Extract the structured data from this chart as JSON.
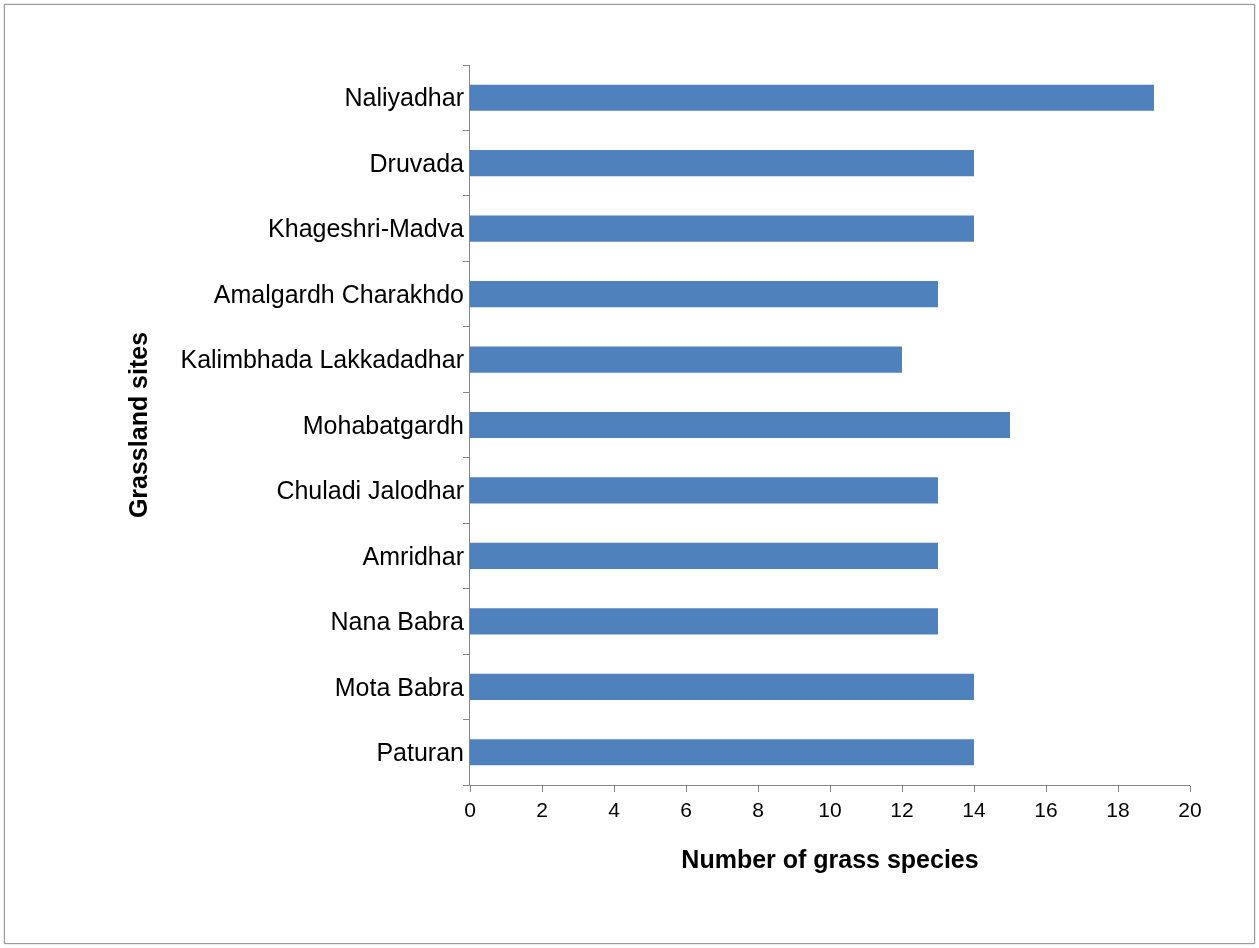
{
  "chart_data": {
    "type": "bar",
    "orientation": "horizontal",
    "xlabel": "Number of grass species",
    "ylabel": "Grassland sites",
    "categories": [
      "Naliyadhar",
      "Druvada",
      "Khageshri-Madva",
      "Amalgardh Charakhdo",
      "Kalimbhada Lakkadadhar",
      "Mohabatgardh",
      "Chuladi Jalodhar",
      "Amridhar",
      "Nana Babra",
      "Mota Babra",
      "Paturan"
    ],
    "values": [
      19,
      14,
      14,
      13,
      12,
      15,
      13,
      13,
      13,
      14,
      14
    ],
    "color": "#4f81bd",
    "xlim": [
      0,
      20
    ],
    "xticks": [
      0,
      2,
      4,
      6,
      8,
      10,
      12,
      14,
      16,
      18,
      20
    ],
    "tick_labels": "xy"
  }
}
